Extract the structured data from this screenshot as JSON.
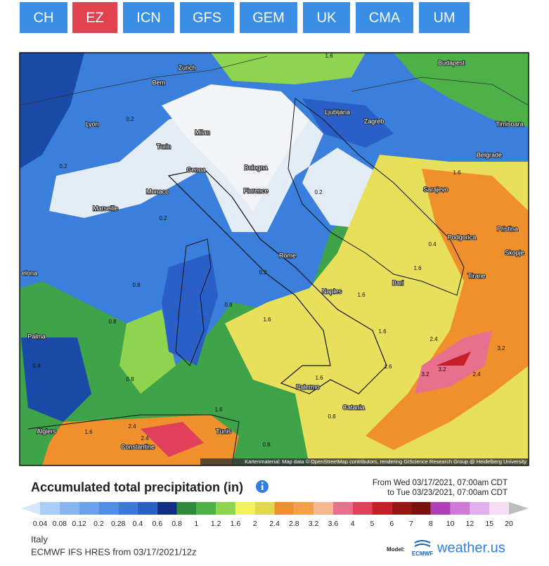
{
  "tabs": [
    {
      "label": "CH",
      "active": false
    },
    {
      "label": "EZ",
      "active": true
    },
    {
      "label": "ICN",
      "active": false
    },
    {
      "label": "GFS",
      "active": false
    },
    {
      "label": "GEM",
      "active": false
    },
    {
      "label": "UK",
      "active": false
    },
    {
      "label": "CMA",
      "active": false
    },
    {
      "label": "UM",
      "active": false
    }
  ],
  "map": {
    "cities": [
      "Zurich",
      "Bern",
      "Budapest",
      "Lyon",
      "Milan",
      "Ljubljana",
      "Zagreb",
      "Timisoara",
      "Turin",
      "Genoa",
      "Bologna",
      "Belgrade",
      "Sarajevo",
      "Monaco",
      "Marseille",
      "Florence",
      "Podgorica",
      "Pristina",
      "Skopje",
      "Rome",
      "Bari",
      "Tirane",
      "Naples",
      "elona",
      "Palma",
      "Palermo",
      "Catania",
      "Algiers",
      "Tunis",
      "Constantine"
    ],
    "contour_labels": [
      "1.6",
      "0.2",
      "0.2",
      "0.2",
      "0.2",
      "0.2",
      "0.8",
      "0.8",
      "0.8",
      "1.6",
      "1.6",
      "1.6",
      "1.6",
      "2.4",
      "3.2",
      "3.2",
      "3.2",
      "2.4",
      "1.6",
      "0.8",
      "1.6",
      "0.8",
      "1.6",
      "1.6",
      "2.4",
      "2.4",
      "0.8",
      "0.4",
      "0.4",
      "1.6"
    ],
    "attribution": "Kartenmaterial: Map data © OpenStreetMap contributors, rendering GIScience Research Group @ Heidelberg University"
  },
  "legend": {
    "title": "Accumulated total precipitation (in)",
    "from": "From Wed 03/17/2021, 07:00am CDT",
    "to": "to Tue 03/23/2021, 07:00am CDT",
    "scale_labels": [
      0.04,
      0.08,
      0.12,
      0.2,
      0.28,
      0.4,
      0.6,
      0.8,
      1,
      1.2,
      1.6,
      2,
      2.4,
      2.8,
      3.2,
      3.6,
      4,
      5,
      6,
      7,
      8,
      10,
      12,
      15,
      20
    ],
    "scale_colors": [
      "#d6e6fb",
      "#a9cdf8",
      "#86b6f1",
      "#6aa2ec",
      "#4f8ee6",
      "#3a78da",
      "#2a5fc8",
      "#0f2f85",
      "#2f8a3a",
      "#4cb248",
      "#8fd44e",
      "#f2f25a",
      "#e2d84a",
      "#f0902c",
      "#f3a048",
      "#f5b890",
      "#e96f8e",
      "#e0405a",
      "#c81e2a",
      "#9a1414",
      "#7a1010",
      "#b040b8",
      "#cf7ad8",
      "#e2b0ea",
      "#f6dcf4",
      "#bdbdbd"
    ]
  },
  "footer": {
    "region": "Italy",
    "model_run": "ECMWF IFS HRES from 03/17/2021/12z",
    "model_label": "Model:",
    "model_logo": "ECMWF",
    "brand": "weather.us"
  }
}
